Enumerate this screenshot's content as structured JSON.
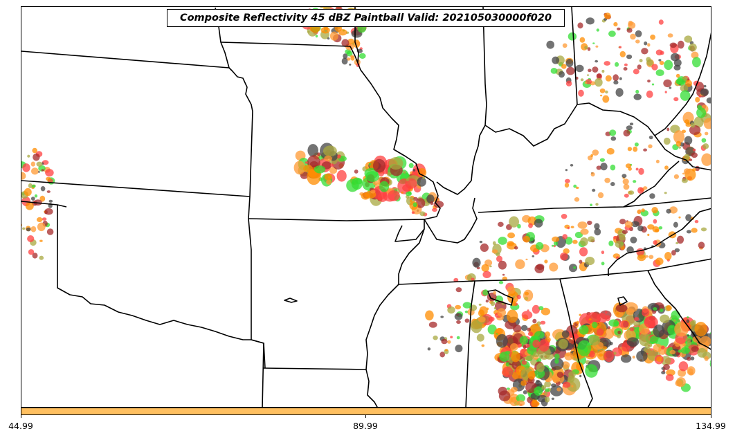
{
  "title": "Composite Reflectivity 45 dBZ Paintball Valid: 202105030000f020",
  "colorbar": {
    "color": "#ffc060",
    "ticks": [
      "44.99",
      "89.99",
      "134.99"
    ]
  },
  "palette": [
    "#ff4040",
    "#33dd33",
    "#ff9933",
    "#a8a840",
    "#a52a2a",
    "#444444",
    "#ff8c00"
  ]
}
